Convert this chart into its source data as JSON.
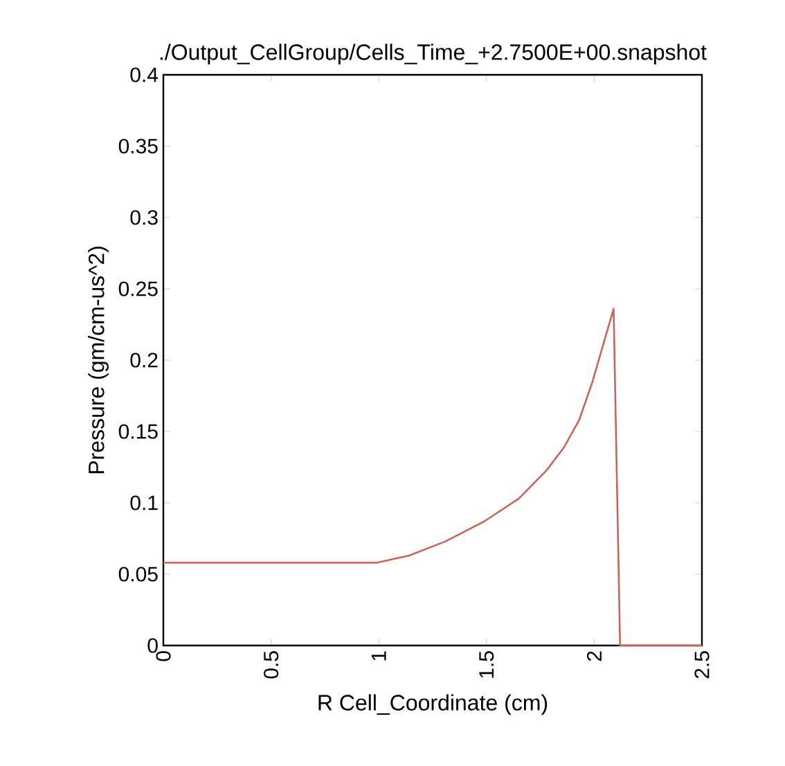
{
  "chart_data": {
    "type": "line",
    "title": "./Output_CellGroup/Cells_Time_+2.7500E+00.snapshot",
    "xlabel": "R Cell_Coordinate (cm)",
    "ylabel": "Pressure (gm/cm-us^2)",
    "x": [
      0,
      0.99,
      1.14,
      1.31,
      1.49,
      1.65,
      1.78,
      1.86,
      1.93,
      1.99,
      2.04,
      2.09,
      2.12,
      2.5
    ],
    "values": [
      0.058,
      0.058,
      0.063,
      0.073,
      0.087,
      0.103,
      0.123,
      0.139,
      0.158,
      0.184,
      0.21,
      0.236,
      0,
      0
    ],
    "color": "#c8645a",
    "xlim": [
      0,
      2.5
    ],
    "ylim": [
      0,
      0.4
    ],
    "xticks": [
      0,
      0.5,
      1,
      1.5,
      2,
      2.5
    ],
    "yticks": [
      0,
      0.05,
      0.1,
      0.15,
      0.2,
      0.25,
      0.3,
      0.35,
      0.4
    ],
    "marker": "none",
    "line_style": "solid"
  }
}
